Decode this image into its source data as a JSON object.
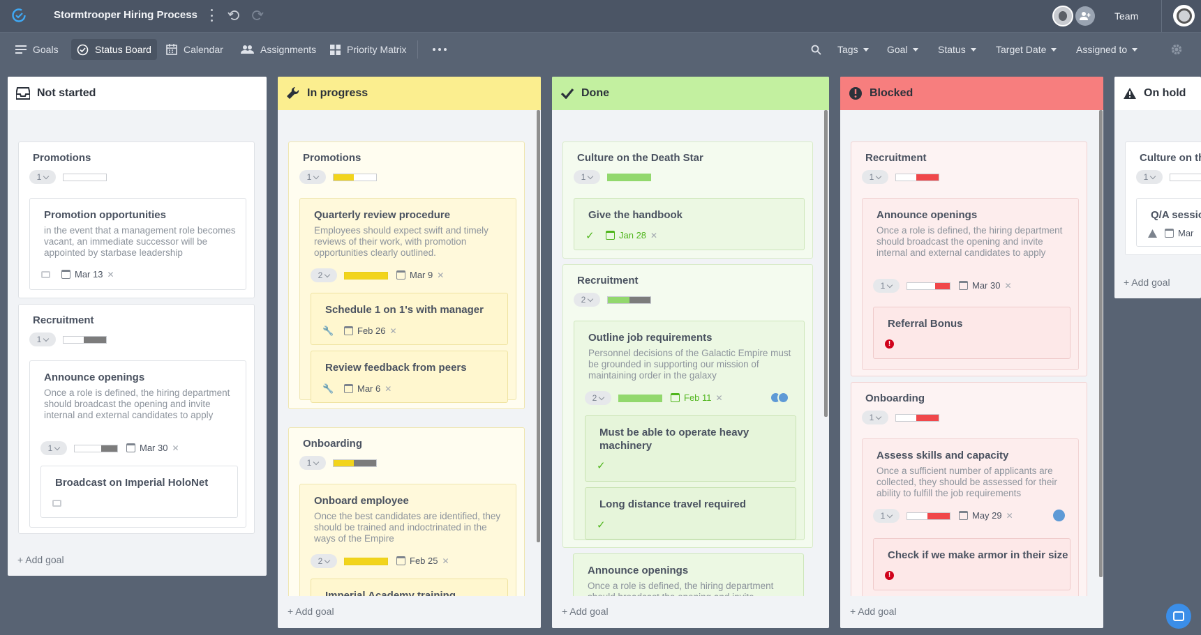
{
  "app": {
    "title": "Stormtrooper Hiring Process",
    "team_label": "Team"
  },
  "nav": [
    "Goals",
    "Status Board",
    "Calendar",
    "Assignments",
    "Priority Matrix"
  ],
  "filters": [
    "Tags",
    "Goal",
    "Status",
    "Target Date",
    "Assigned to"
  ],
  "add_goal": "+ Add goal",
  "columns": {
    "not_started": {
      "title": "Not started",
      "g1": {
        "title": "Promotions",
        "count": "1",
        "c1": {
          "title": "Promotion opportunities",
          "desc": "in the event that a management role becomes vacant, an immediate successor will be appointed by starbase leadership",
          "date": "Mar 13"
        }
      },
      "g2": {
        "title": "Recruitment",
        "count": "1",
        "c1": {
          "title": "Announce openings",
          "desc": "Once a role is defined, the hiring department should broadcast the opening and invite internal and external candidates to apply",
          "count": "1",
          "date": "Mar 30",
          "sub": {
            "title": "Broadcast on Imperial HoloNet"
          }
        }
      }
    },
    "in_progress": {
      "title": "In progress",
      "g1": {
        "title": "Promotions",
        "count": "1",
        "c1": {
          "title": "Quarterly review procedure",
          "desc": "Employees should expect swift and timely reviews of their work, with promotion opportunities clearly outlined.",
          "count": "2",
          "date": "Mar 9",
          "s1": {
            "title": "Schedule 1 on 1's with manager",
            "date": "Feb 26"
          },
          "s2": {
            "title": "Review feedback from peers",
            "date": "Mar 6"
          }
        }
      },
      "g2": {
        "title": "Onboarding",
        "count": "1",
        "c1": {
          "title": "Onboard employee",
          "desc": "Once the best candidates are identified, they should be trained and indoctrinated in the ways of the Empire",
          "count": "2",
          "date": "Feb 25",
          "s1": {
            "title": "Imperial Academy training"
          }
        }
      }
    },
    "done": {
      "title": "Done",
      "g1": {
        "title": "Culture on the Death Star",
        "count": "1",
        "c1": {
          "title": "Give the handbook",
          "date": "Jan 28"
        }
      },
      "g2": {
        "title": "Recruitment",
        "count": "2",
        "c1": {
          "title": "Outline job requirements",
          "desc": "Personnel decisions of the Galactic Empire must be grounded in supporting our mission of maintaining order in the galaxy",
          "count": "2",
          "date": "Feb 11",
          "s1": {
            "title": "Must be able to operate heavy machinery"
          },
          "s2": {
            "title": "Long distance travel required"
          }
        },
        "c2": {
          "title": "Announce openings",
          "desc": "Once a role is defined, the hiring department should broadcast the opening and invite"
        }
      }
    },
    "blocked": {
      "title": "Blocked",
      "g1": {
        "title": "Recruitment",
        "count": "1",
        "c1": {
          "title": "Announce openings",
          "desc": "Once a role is defined, the hiring department should broadcast the opening and invite internal and external candidates to apply",
          "count": "1",
          "date": "Mar 30",
          "s1": {
            "title": "Referral Bonus"
          }
        }
      },
      "g2": {
        "title": "Onboarding",
        "count": "1",
        "c1": {
          "title": "Assess skills and capacity",
          "desc": "Once a sufficient number of applicants are collected, they should be assessed for their ability to fulfill the job requirements",
          "count": "1",
          "date": "May 29",
          "s1": {
            "title": "Check if we make armor in their size"
          }
        }
      }
    },
    "on_hold": {
      "title": "On hold",
      "g1": {
        "title": "Culture on the Death Star",
        "count": "1",
        "c1": {
          "title": "Q/A session",
          "date": "Mar"
        }
      }
    }
  },
  "colors": {
    "not_started": "#ffffff",
    "in_progress": "#fbee8f",
    "done": "#c3f0a0",
    "blocked": "#f77e7e",
    "on_hold": "#ffffff"
  }
}
